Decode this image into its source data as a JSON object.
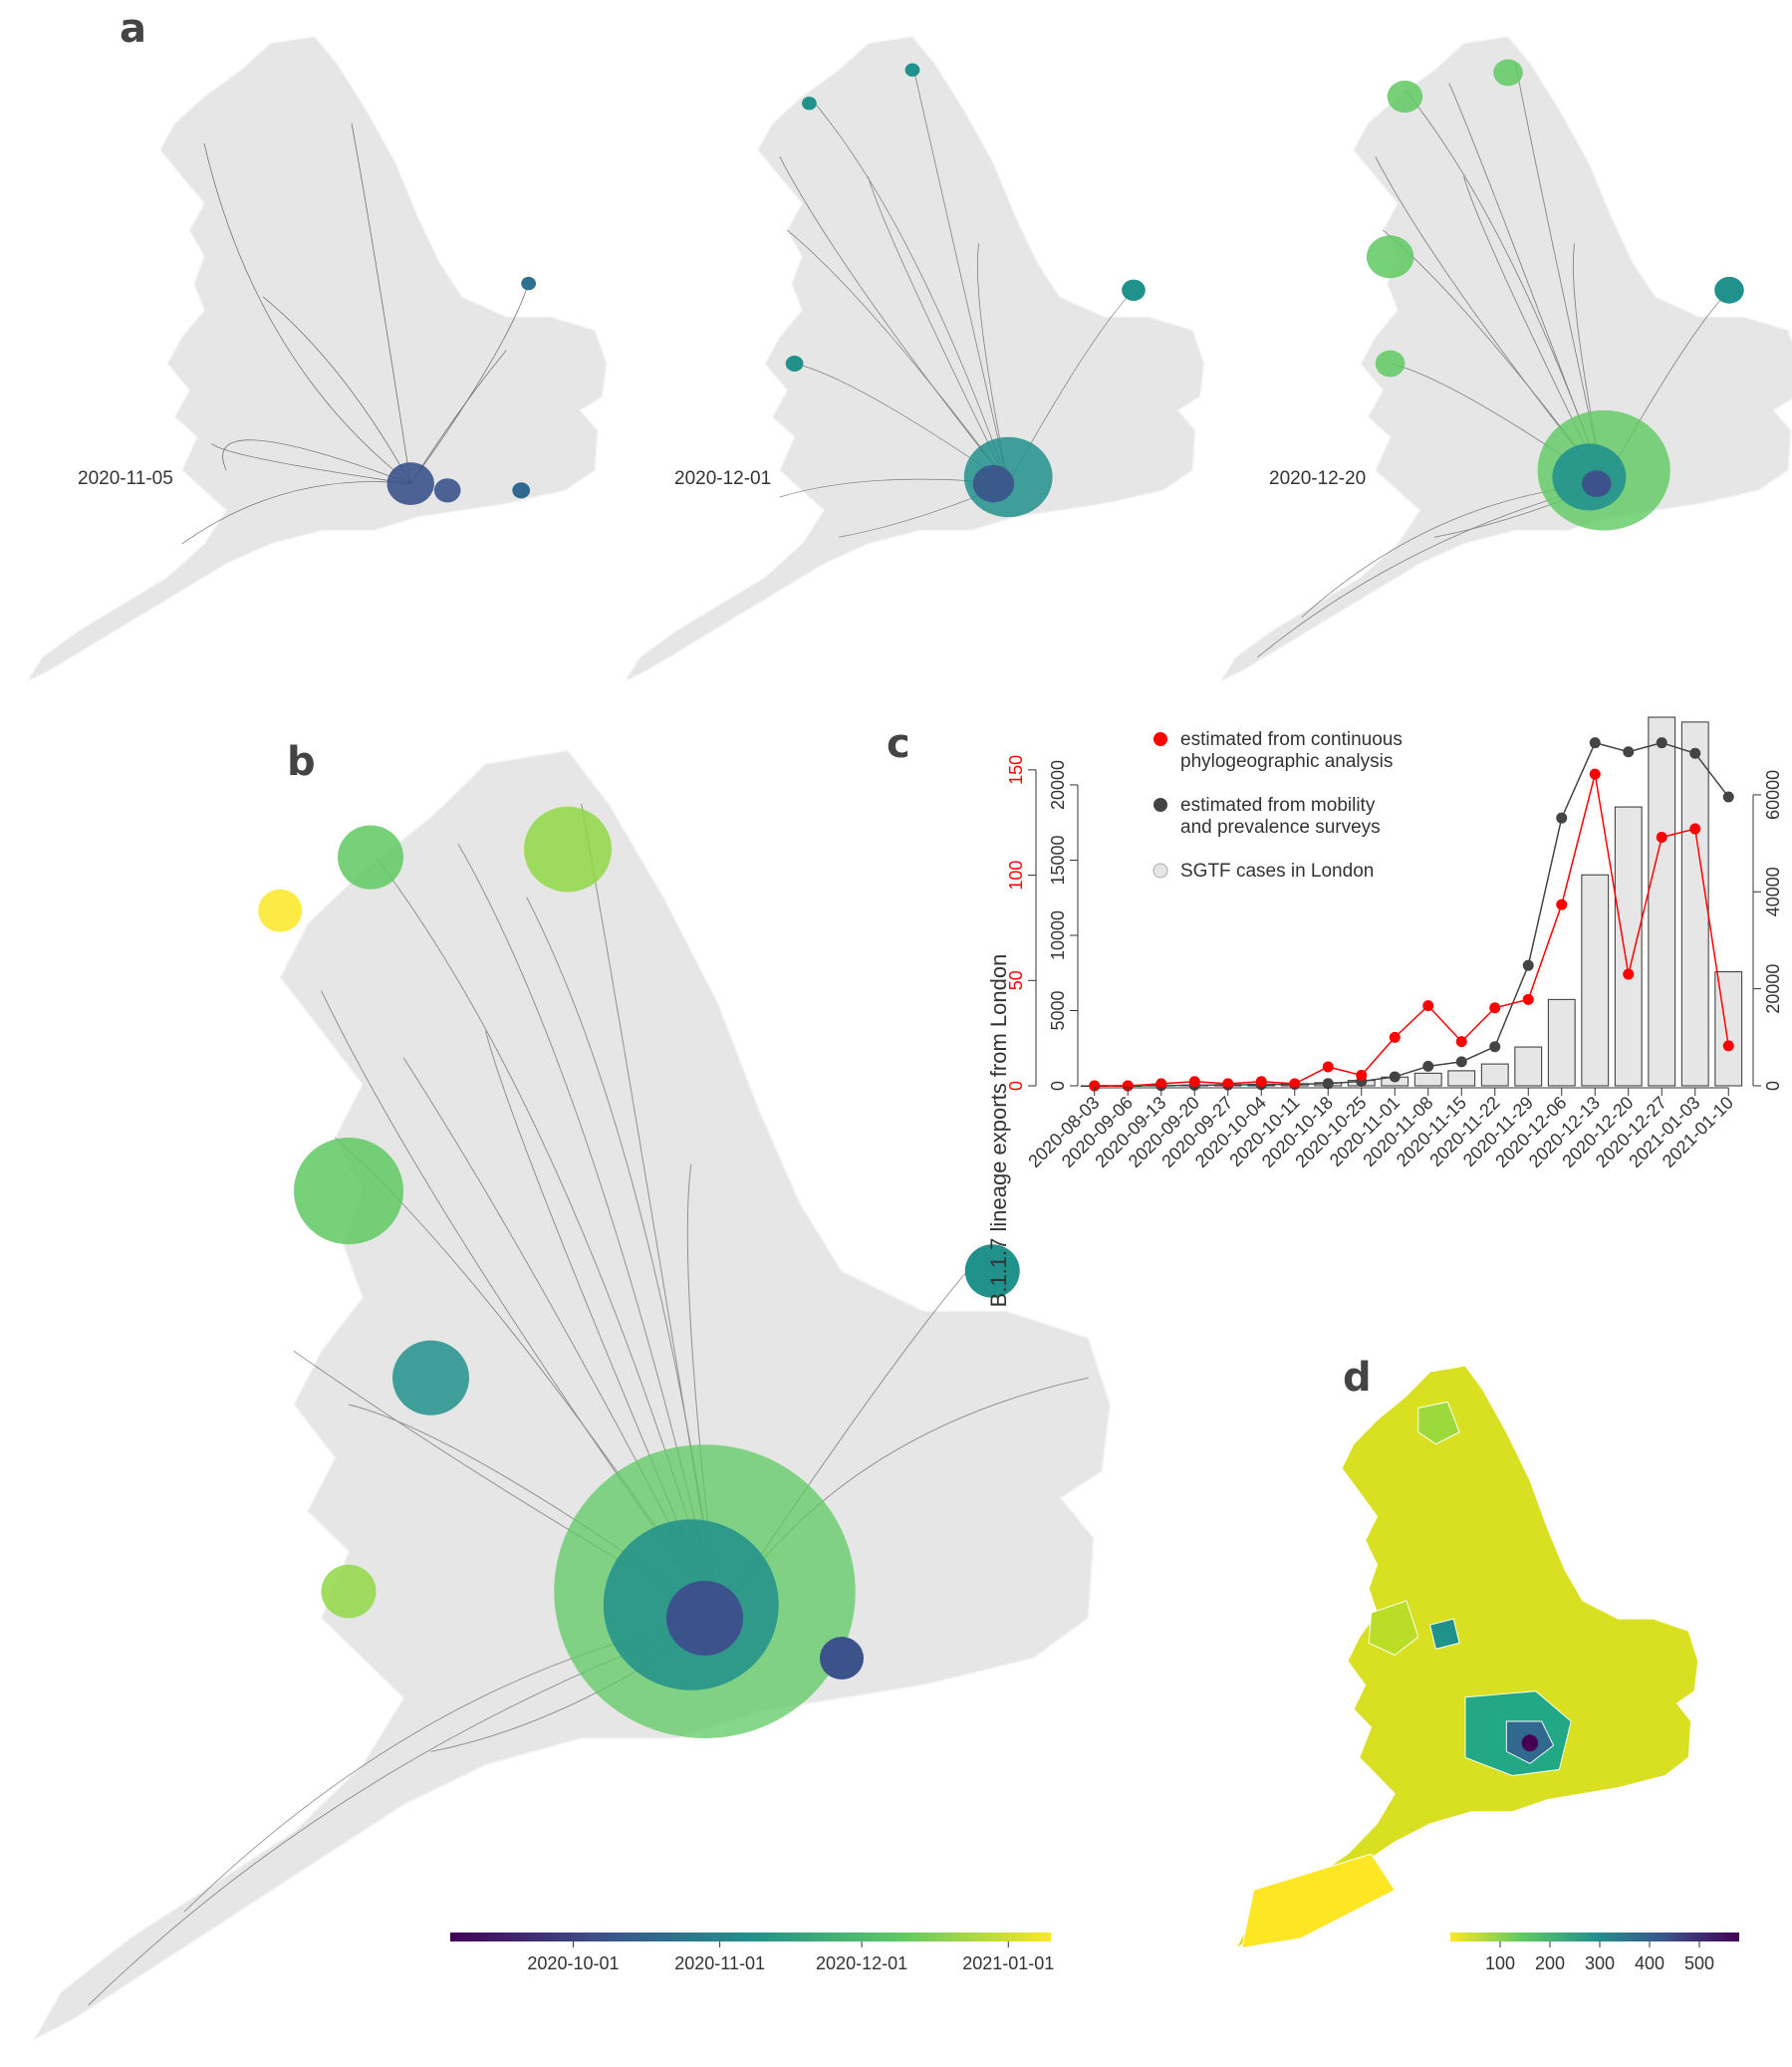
{
  "panels": {
    "a": {
      "letter": "a",
      "dates": [
        "2020-11-05",
        "2020-12-01",
        "2020-12-20"
      ]
    },
    "b": {
      "letter": "b"
    },
    "c": {
      "letter": "c"
    },
    "d": {
      "letter": "d"
    }
  },
  "colors": {
    "map_land": "#e6e6e6",
    "red_series": "#ff0000",
    "grey_series": "#444444",
    "bars": "#e6e6e6",
    "viridis": [
      "#440154",
      "#3b528b",
      "#21918c",
      "#5ec962",
      "#fde725"
    ]
  },
  "chart_data": [
    {
      "type": "bar",
      "panel": "c",
      "title": "",
      "xlabel": "",
      "ylabel": "B.1.1.7 lineage exports from London",
      "categories": [
        "2020-08-03",
        "2020-09-06",
        "2020-09-13",
        "2020-09-20",
        "2020-09-27",
        "2020-10-04",
        "2020-10-11",
        "2020-10-18",
        "2020-10-25",
        "2020-11-01",
        "2020-11-08",
        "2020-11-15",
        "2020-11-22",
        "2020-11-29",
        "2020-12-06",
        "2020-12-13",
        "2020-12-20",
        "2020-12-27",
        "2021-01-03",
        "2021-01-10"
      ],
      "legend": {
        "placement": "top-left",
        "entries": [
          {
            "label_lines": [
              "estimated from continuous",
              "phylogeographic analysis"
            ],
            "symbol": "red-dot"
          },
          {
            "label_lines": [
              "estimated from mobility",
              "and prevalence surveys"
            ],
            "symbol": "grey-dot"
          },
          {
            "label_lines": [
              "SGTF cases in London"
            ],
            "symbol": "light-dot"
          }
        ]
      },
      "axes": {
        "left_red": {
          "ticks": [
            0,
            50,
            100,
            150
          ],
          "ylim": [
            0,
            175
          ]
        },
        "left_black": {
          "ticks": [
            0,
            5000,
            10000,
            15000,
            20000
          ],
          "ylim": [
            0,
            24500
          ]
        },
        "right": {
          "ticks": [
            0,
            20000,
            40000,
            60000
          ],
          "ylim": [
            0,
            76000
          ]
        }
      },
      "series": [
        {
          "name": "estimated from continuous phylogeographic analysis",
          "axis": "left_red",
          "values": [
            0,
            0,
            1,
            2,
            1,
            2,
            1,
            9,
            5,
            23,
            38,
            21,
            37,
            41,
            86,
            148,
            53,
            118,
            122,
            19
          ]
        },
        {
          "name": "estimated from mobility and prevalence surveys",
          "axis": "left_black",
          "values": [
            0,
            0,
            20,
            40,
            60,
            80,
            100,
            150,
            300,
            600,
            1300,
            1600,
            2600,
            8000,
            17800,
            22800,
            22200,
            22800,
            22100,
            19200
          ]
        },
        {
          "name": "SGTF cases in London",
          "axis": "right",
          "kind": "bar",
          "values": [
            0,
            0,
            80,
            150,
            250,
            350,
            450,
            650,
            1100,
            1800,
            2600,
            3100,
            4500,
            8000,
            17800,
            43500,
            57500,
            76000,
            75000,
            23500
          ]
        }
      ]
    },
    {
      "type": "heatmap",
      "panel": "b",
      "title": "",
      "colorbar": {
        "ticks": [
          "2020-10-01",
          "2020-11-01",
          "2020-12-01",
          "2021-01-01"
        ],
        "range": [
          "2020-09-05",
          "2021-01-10"
        ]
      }
    },
    {
      "type": "heatmap",
      "panel": "d",
      "title": "",
      "colorbar": {
        "ticks": [
          100,
          200,
          300,
          400,
          500
        ],
        "range": [
          0,
          580
        ]
      }
    }
  ]
}
